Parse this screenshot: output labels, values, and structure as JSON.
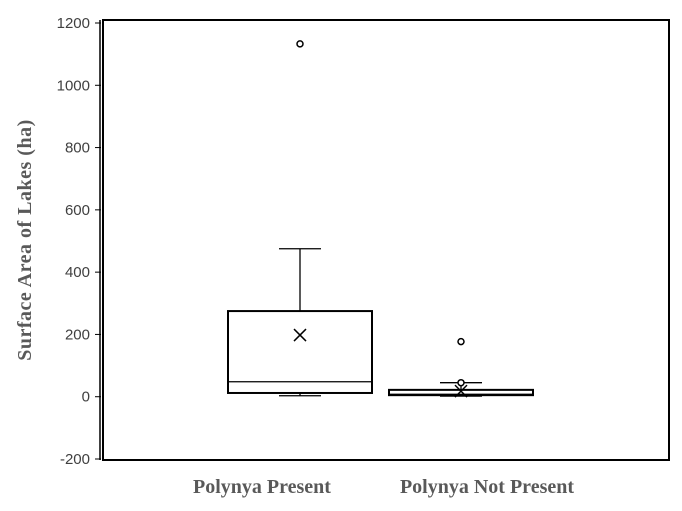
{
  "chart_data": {
    "type": "box",
    "title": "",
    "xlabel": "",
    "ylabel": "Surface  Area  of  Lakes  (ha)",
    "ylim": [
      -200,
      1200
    ],
    "yticks": [
      -200,
      0,
      200,
      400,
      600,
      800,
      1000,
      1200
    ],
    "grid": false,
    "legend": "none",
    "categories": [
      "Polynya Present",
      "Polynya Not Present"
    ],
    "boxes": [
      {
        "category": "Polynya Present",
        "min": 3,
        "q1": 12,
        "median": 48,
        "q3": 275,
        "max": 475,
        "mean": 198,
        "outliers": [
          1133
        ]
      },
      {
        "category": "Polynya Not Present",
        "min": 2,
        "q1": 5,
        "median": 8,
        "q3": 22,
        "max": 45,
        "mean": 18,
        "outliers": [
          45,
          177
        ]
      }
    ]
  }
}
